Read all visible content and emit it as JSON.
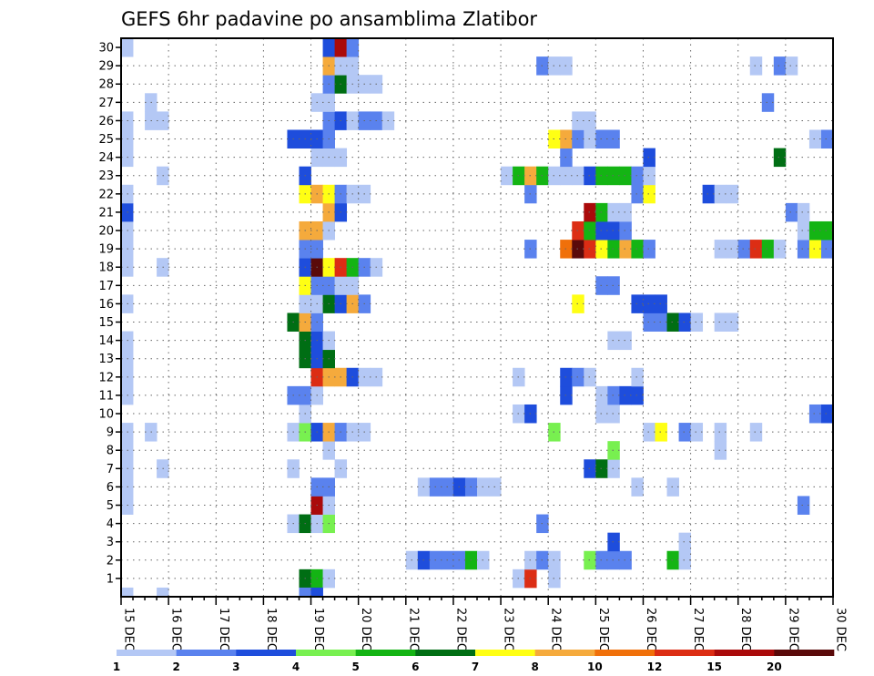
{
  "chart_data": {
    "type": "heatmap",
    "title": "GEFS 6hr padavine po ansamblima Zlatibor",
    "xlabel": "",
    "ylabel": "",
    "x_ticks": [
      "15 DEC",
      "16 DEC",
      "17 DEC",
      "18 DEC",
      "19 DEC",
      "20 DEC",
      "21 DEC",
      "22 DEC",
      "23 DEC",
      "24 DEC",
      "25 DEC",
      "26 DEC",
      "27 DEC",
      "28 DEC",
      "29 DEC",
      "30 DEC"
    ],
    "y_ticks": [
      "1",
      "2",
      "3",
      "4",
      "5",
      "6",
      "7",
      "8",
      "9",
      "10",
      "11",
      "12",
      "13",
      "14",
      "15",
      "16",
      "17",
      "18",
      "19",
      "20",
      "21",
      "22",
      "23",
      "24",
      "25",
      "26",
      "27",
      "28",
      "29",
      "30"
    ],
    "x_range_steps": [
      0,
      60
    ],
    "y_range_members": [
      0,
      30
    ],
    "step_hours": 6,
    "grid": true,
    "colorbar": {
      "levels": [
        "1",
        "2",
        "3",
        "4",
        "5",
        "6",
        "7",
        "8",
        "10",
        "12",
        "15",
        "20"
      ],
      "colors": [
        "#b4c8f5",
        "#5a82ee",
        "#1e4ddc",
        "#78f050",
        "#14b414",
        "#006e14",
        "#ffff14",
        "#f5aa3c",
        "#f0700a",
        "#dc2d14",
        "#aa0a0a",
        "#5a0a0a"
      ],
      "placement": "bottom"
    },
    "cells": [
      [
        1,
        16,
        6
      ],
      [
        1,
        17,
        5
      ],
      [
        1,
        18,
        1
      ],
      [
        1,
        34,
        1
      ],
      [
        1,
        35,
        10
      ],
      [
        1,
        37,
        1
      ],
      [
        2,
        25,
        1
      ],
      [
        2,
        26,
        3
      ],
      [
        2,
        27,
        2
      ],
      [
        2,
        28,
        2
      ],
      [
        2,
        29,
        2
      ],
      [
        2,
        30,
        5
      ],
      [
        2,
        31,
        1
      ],
      [
        2,
        35,
        1
      ],
      [
        2,
        36,
        2
      ],
      [
        2,
        37,
        1
      ],
      [
        2,
        40,
        4
      ],
      [
        2,
        41,
        2
      ],
      [
        2,
        42,
        2
      ],
      [
        2,
        43,
        2
      ],
      [
        2,
        47,
        5
      ],
      [
        2,
        48,
        1
      ],
      [
        3,
        42,
        3
      ],
      [
        3,
        48,
        1
      ],
      [
        4,
        15,
        1
      ],
      [
        4,
        16,
        6
      ],
      [
        4,
        17,
        1
      ],
      [
        4,
        18,
        4
      ],
      [
        4,
        36,
        2
      ],
      [
        5,
        1,
        1
      ],
      [
        5,
        17,
        11
      ],
      [
        5,
        18,
        1
      ],
      [
        5,
        58,
        2
      ],
      [
        6,
        1,
        1
      ],
      [
        6,
        17,
        2
      ],
      [
        6,
        18,
        2
      ],
      [
        6,
        26,
        1
      ],
      [
        6,
        27,
        2
      ],
      [
        6,
        28,
        2
      ],
      [
        6,
        29,
        3
      ],
      [
        6,
        30,
        2
      ],
      [
        6,
        31,
        1
      ],
      [
        6,
        32,
        1
      ],
      [
        6,
        44,
        1
      ],
      [
        6,
        47,
        1
      ],
      [
        7,
        1,
        1
      ],
      [
        7,
        4,
        1
      ],
      [
        7,
        15,
        1
      ],
      [
        7,
        19,
        1
      ],
      [
        7,
        40,
        3
      ],
      [
        7,
        41,
        6
      ],
      [
        7,
        42,
        1
      ],
      [
        8,
        1,
        1
      ],
      [
        8,
        18,
        1
      ],
      [
        8,
        42,
        4
      ],
      [
        8,
        51,
        1
      ],
      [
        9,
        1,
        1
      ],
      [
        9,
        3,
        1
      ],
      [
        9,
        15,
        1
      ],
      [
        9,
        16,
        4
      ],
      [
        9,
        17,
        3
      ],
      [
        9,
        18,
        8
      ],
      [
        9,
        19,
        2
      ],
      [
        9,
        20,
        1
      ],
      [
        9,
        21,
        1
      ],
      [
        9,
        37,
        4
      ],
      [
        9,
        45,
        1
      ],
      [
        9,
        46,
        7
      ],
      [
        9,
        48,
        2
      ],
      [
        9,
        49,
        1
      ],
      [
        9,
        51,
        1
      ],
      [
        9,
        54,
        1
      ],
      [
        10,
        16,
        1
      ],
      [
        10,
        34,
        1
      ],
      [
        10,
        35,
        3
      ],
      [
        10,
        41,
        1
      ],
      [
        10,
        42,
        1
      ],
      [
        10,
        59,
        2
      ],
      [
        10,
        60,
        3
      ],
      [
        11,
        1,
        1
      ],
      [
        11,
        15,
        2
      ],
      [
        11,
        16,
        2
      ],
      [
        11,
        17,
        1
      ],
      [
        11,
        38,
        3
      ],
      [
        11,
        41,
        1
      ],
      [
        11,
        42,
        2
      ],
      [
        11,
        43,
        3
      ],
      [
        11,
        44,
        3
      ],
      [
        12,
        1,
        1
      ],
      [
        12,
        17,
        10
      ],
      [
        12,
        18,
        8
      ],
      [
        12,
        19,
        8
      ],
      [
        12,
        20,
        3
      ],
      [
        12,
        21,
        1
      ],
      [
        12,
        22,
        1
      ],
      [
        12,
        34,
        1
      ],
      [
        12,
        38,
        3
      ],
      [
        12,
        39,
        2
      ],
      [
        12,
        40,
        1
      ],
      [
        12,
        44,
        1
      ],
      [
        13,
        1,
        1
      ],
      [
        13,
        16,
        6
      ],
      [
        13,
        17,
        3
      ],
      [
        13,
        18,
        6
      ],
      [
        14,
        1,
        1
      ],
      [
        14,
        16,
        6
      ],
      [
        14,
        17,
        3
      ],
      [
        14,
        18,
        1
      ],
      [
        14,
        42,
        1
      ],
      [
        14,
        43,
        1
      ],
      [
        15,
        15,
        6
      ],
      [
        15,
        16,
        8
      ],
      [
        15,
        17,
        2
      ],
      [
        15,
        45,
        2
      ],
      [
        15,
        46,
        2
      ],
      [
        15,
        47,
        6
      ],
      [
        15,
        48,
        3
      ],
      [
        15,
        49,
        1
      ],
      [
        15,
        51,
        1
      ],
      [
        15,
        52,
        1
      ],
      [
        16,
        1,
        1
      ],
      [
        16,
        16,
        1
      ],
      [
        16,
        17,
        1
      ],
      [
        16,
        18,
        6
      ],
      [
        16,
        19,
        3
      ],
      [
        16,
        20,
        8
      ],
      [
        16,
        21,
        2
      ],
      [
        16,
        39,
        7
      ],
      [
        16,
        44,
        3
      ],
      [
        16,
        45,
        3
      ],
      [
        16,
        46,
        3
      ],
      [
        17,
        16,
        7
      ],
      [
        17,
        17,
        2
      ],
      [
        17,
        18,
        2
      ],
      [
        17,
        19,
        1
      ],
      [
        17,
        20,
        1
      ],
      [
        17,
        41,
        2
      ],
      [
        17,
        42,
        2
      ],
      [
        18,
        1,
        1
      ],
      [
        18,
        4,
        1
      ],
      [
        18,
        16,
        3
      ],
      [
        18,
        17,
        12
      ],
      [
        18,
        18,
        7
      ],
      [
        18,
        19,
        10
      ],
      [
        18,
        20,
        5
      ],
      [
        18,
        21,
        2
      ],
      [
        18,
        22,
        1
      ],
      [
        19,
        1,
        1
      ],
      [
        19,
        16,
        2
      ],
      [
        19,
        17,
        2
      ],
      [
        19,
        35,
        2
      ],
      [
        19,
        38,
        9
      ],
      [
        19,
        39,
        12
      ],
      [
        19,
        40,
        10
      ],
      [
        19,
        41,
        7
      ],
      [
        19,
        42,
        5
      ],
      [
        19,
        43,
        8
      ],
      [
        19,
        44,
        5
      ],
      [
        19,
        45,
        2
      ],
      [
        19,
        51,
        1
      ],
      [
        19,
        52,
        1
      ],
      [
        19,
        53,
        2
      ],
      [
        19,
        54,
        10
      ],
      [
        19,
        55,
        5
      ],
      [
        19,
        56,
        1
      ],
      [
        19,
        58,
        2
      ],
      [
        19,
        59,
        7
      ],
      [
        19,
        60,
        2
      ],
      [
        20,
        1,
        1
      ],
      [
        20,
        16,
        8
      ],
      [
        20,
        17,
        8
      ],
      [
        20,
        18,
        1
      ],
      [
        20,
        39,
        10
      ],
      [
        20,
        40,
        5
      ],
      [
        20,
        41,
        3
      ],
      [
        20,
        42,
        3
      ],
      [
        20,
        43,
        2
      ],
      [
        20,
        58,
        1
      ],
      [
        20,
        59,
        5
      ],
      [
        20,
        60,
        5
      ],
      [
        21,
        1,
        3
      ],
      [
        21,
        18,
        8
      ],
      [
        21,
        19,
        3
      ],
      [
        21,
        40,
        11
      ],
      [
        21,
        41,
        5
      ],
      [
        21,
        42,
        1
      ],
      [
        21,
        43,
        1
      ],
      [
        21,
        57,
        2
      ],
      [
        21,
        58,
        1
      ],
      [
        22,
        1,
        1
      ],
      [
        22,
        16,
        7
      ],
      [
        22,
        17,
        8
      ],
      [
        22,
        18,
        7
      ],
      [
        22,
        19,
        2
      ],
      [
        22,
        20,
        1
      ],
      [
        22,
        21,
        1
      ],
      [
        22,
        35,
        2
      ],
      [
        22,
        44,
        2
      ],
      [
        22,
        45,
        7
      ],
      [
        22,
        50,
        3
      ],
      [
        22,
        51,
        1
      ],
      [
        22,
        52,
        1
      ],
      [
        23,
        4,
        1
      ],
      [
        23,
        16,
        3
      ],
      [
        23,
        33,
        1
      ],
      [
        23,
        34,
        5
      ],
      [
        23,
        35,
        8
      ],
      [
        23,
        36,
        5
      ],
      [
        23,
        37,
        1
      ],
      [
        23,
        38,
        1
      ],
      [
        23,
        39,
        1
      ],
      [
        23,
        40,
        3
      ],
      [
        23,
        41,
        5
      ],
      [
        23,
        42,
        5
      ],
      [
        23,
        43,
        5
      ],
      [
        23,
        44,
        2
      ],
      [
        23,
        45,
        1
      ],
      [
        24,
        1,
        1
      ],
      [
        24,
        17,
        1
      ],
      [
        24,
        18,
        1
      ],
      [
        24,
        19,
        1
      ],
      [
        24,
        38,
        2
      ],
      [
        24,
        45,
        3
      ],
      [
        24,
        56,
        6
      ],
      [
        25,
        1,
        1
      ],
      [
        25,
        15,
        3
      ],
      [
        25,
        16,
        3
      ],
      [
        25,
        17,
        3
      ],
      [
        25,
        18,
        2
      ],
      [
        25,
        37,
        7
      ],
      [
        25,
        38,
        8
      ],
      [
        25,
        39,
        2
      ],
      [
        25,
        40,
        1
      ],
      [
        25,
        41,
        2
      ],
      [
        25,
        42,
        2
      ],
      [
        25,
        59,
        1
      ],
      [
        25,
        60,
        2
      ],
      [
        26,
        1,
        1
      ],
      [
        26,
        3,
        1
      ],
      [
        26,
        4,
        1
      ],
      [
        26,
        18,
        2
      ],
      [
        26,
        19,
        3
      ],
      [
        26,
        20,
        1
      ],
      [
        26,
        21,
        2
      ],
      [
        26,
        22,
        2
      ],
      [
        26,
        23,
        1
      ],
      [
        26,
        39,
        1
      ],
      [
        26,
        40,
        1
      ],
      [
        27,
        3,
        1
      ],
      [
        27,
        17,
        1
      ],
      [
        27,
        18,
        1
      ],
      [
        27,
        55,
        2
      ],
      [
        28,
        18,
        2
      ],
      [
        28,
        19,
        6
      ],
      [
        28,
        20,
        1
      ],
      [
        28,
        21,
        1
      ],
      [
        28,
        22,
        1
      ],
      [
        29,
        18,
        8
      ],
      [
        29,
        19,
        1
      ],
      [
        29,
        20,
        1
      ],
      [
        29,
        36,
        2
      ],
      [
        29,
        37,
        1
      ],
      [
        29,
        38,
        1
      ],
      [
        29,
        54,
        1
      ],
      [
        29,
        56,
        2
      ],
      [
        29,
        57,
        1
      ],
      [
        30,
        1,
        1
      ],
      [
        30,
        18,
        3
      ],
      [
        30,
        19,
        11
      ],
      [
        30,
        20,
        2
      ]
    ],
    "extra_row_0": [
      [
        1,
        1
      ],
      [
        4,
        1
      ],
      [
        16,
        2
      ],
      [
        17,
        3
      ]
    ]
  }
}
